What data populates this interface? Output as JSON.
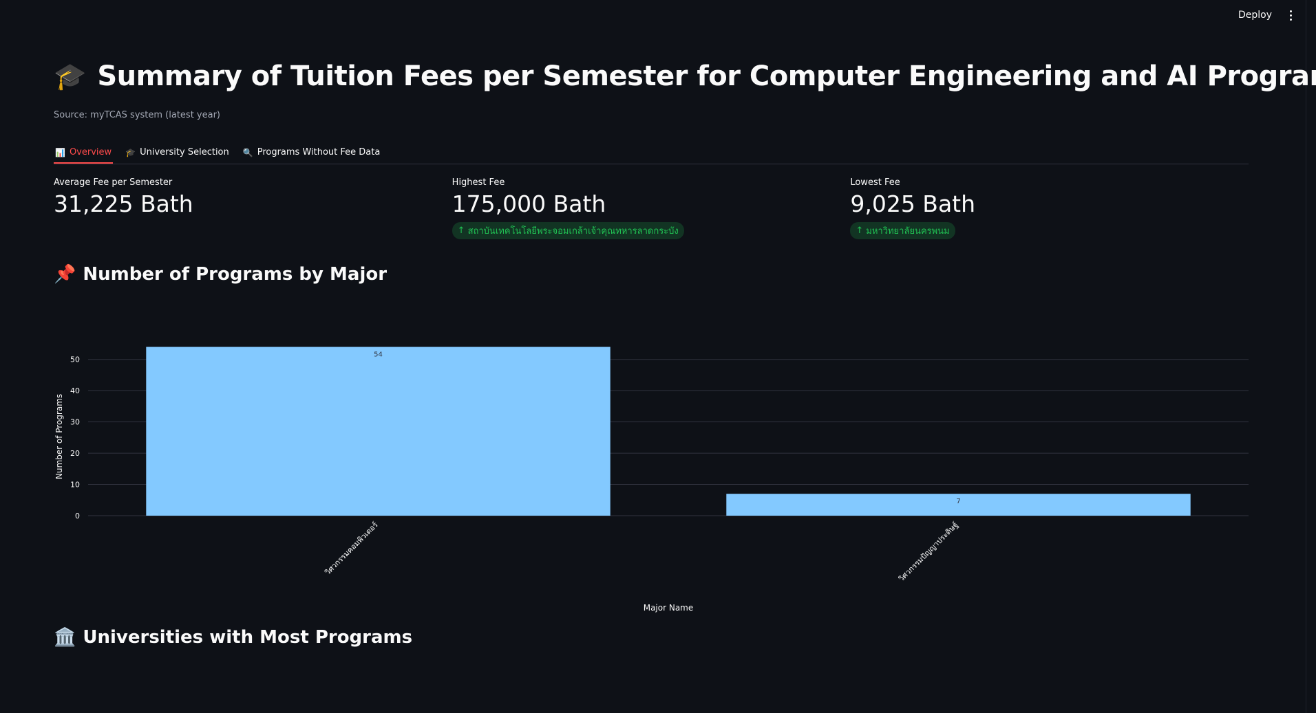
{
  "header": {
    "deploy_label": "Deploy",
    "menu_icon": "kebab-menu-icon"
  },
  "title": {
    "icon": "🎓",
    "text": "Summary of Tuition Fees per Semester for Computer Engineering and AI Programs"
  },
  "caption": "Source: myTCAS system (latest year)",
  "tabs": [
    {
      "icon": "📊",
      "label": "Overview",
      "active": true
    },
    {
      "icon": "🎓",
      "label": "University Selection",
      "active": false
    },
    {
      "icon": "🔍",
      "label": "Programs Without Fee Data",
      "active": false
    }
  ],
  "metrics": [
    {
      "label": "Average Fee per Semester",
      "value": "31,225 Bath",
      "delta": ""
    },
    {
      "label": "Highest Fee",
      "value": "175,000 Bath",
      "delta": "สถาบันเทคโนโลยีพระจอมเกล้าเจ้าคุณทหารลาดกระบัง"
    },
    {
      "label": "Lowest Fee",
      "value": "9,025 Bath",
      "delta": "มหาวิทยาลัยนครพนม"
    }
  ],
  "sections": {
    "programs_by_major": {
      "icon": "📌",
      "title": "Number of Programs by Major"
    },
    "universities": {
      "icon": "🏛️",
      "title": "Universities with Most Programs"
    }
  },
  "chart_data": {
    "type": "bar",
    "categories": [
      "วิศวกรรมคอมพิวเตอร์",
      "วิศวกรรมปัญญาประดิษฐ์"
    ],
    "values": [
      54,
      7
    ],
    "title": "",
    "xlabel": "Major Name",
    "ylabel": "Number of Programs",
    "ylim": [
      0,
      55
    ],
    "yticks": [
      0,
      10,
      20,
      30,
      40,
      50
    ],
    "grid": true,
    "bar_color": "#83c9ff",
    "show_data_labels": true
  }
}
